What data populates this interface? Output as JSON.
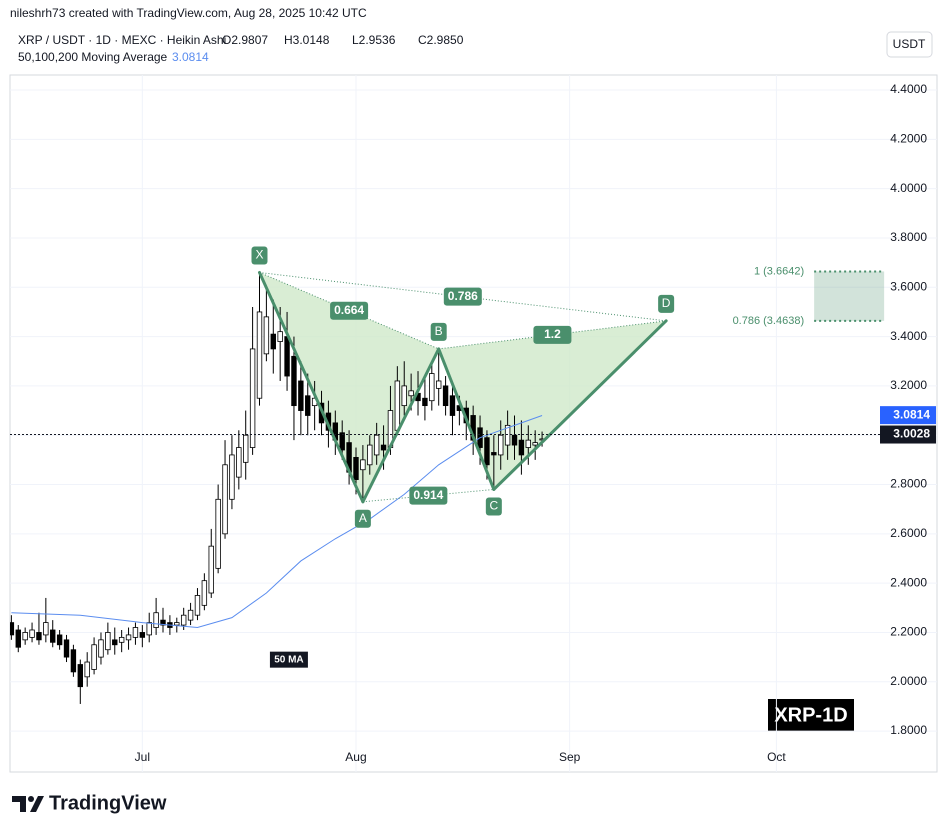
{
  "header": {
    "author_line": "nileshrh73 created with TradingView.com, Aug 28, 2025 10:42 UTC",
    "currency_button": "USDT",
    "brand": "TradingView",
    "watermark": "XRP-1D"
  },
  "chart_data": {
    "type": "candlestick",
    "title": "XRP / USDT · 1D · MEXC · Heikin Ashi",
    "ohlc": [
      "O2.9807",
      "H3.0148",
      "L2.9536",
      "C2.9850"
    ],
    "up_color": "#ffffff",
    "down_color": "#000000",
    "wick_color": "#000000",
    "open": [
      2.24,
      2.21,
      2.17,
      2.18,
      2.2,
      2.19,
      2.21,
      2.19,
      2.17,
      2.13,
      2.07,
      2.02,
      2.05,
      2.1,
      2.13,
      2.17,
      2.16,
      2.17,
      2.18,
      2.2,
      2.19,
      2.22,
      2.25,
      2.24,
      2.23,
      2.23,
      2.25,
      2.27,
      2.31,
      2.36,
      2.46,
      2.6,
      2.74,
      2.83,
      2.89,
      2.95,
      3.15,
      3.33,
      3.41,
      3.38,
      3.4,
      3.32,
      3.22,
      3.16,
      3.12,
      3.13,
      3.09,
      3.05,
      3.01,
      2.97,
      2.91,
      2.86,
      2.88,
      2.92,
      2.96,
      2.95,
      3.02,
      3.12,
      3.16,
      3.17,
      3.15,
      3.14,
      3.19,
      3.2,
      3.16,
      3.12,
      3.11,
      3.08,
      3.03,
      2.99,
      2.93,
      2.92,
      2.96,
      3.0,
      2.98,
      2.95,
      2.96,
      2.9807
    ],
    "high": [
      2.27,
      2.23,
      2.22,
      2.24,
      2.28,
      2.34,
      2.25,
      2.21,
      2.19,
      2.15,
      2.09,
      2.12,
      2.18,
      2.2,
      2.24,
      2.22,
      2.21,
      2.22,
      2.24,
      2.23,
      2.28,
      2.34,
      2.3,
      2.27,
      2.26,
      2.3,
      2.32,
      2.38,
      2.44,
      2.62,
      2.8,
      2.98,
      3.0,
      3.02,
      3.1,
      3.52,
      3.66,
      3.6,
      3.55,
      3.52,
      3.5,
      3.4,
      3.3,
      3.25,
      3.22,
      3.18,
      3.14,
      3.1,
      3.06,
      3.02,
      2.95,
      2.96,
      3.0,
      3.05,
      3.04,
      3.2,
      3.28,
      3.3,
      3.25,
      3.26,
      3.24,
      3.3,
      3.35,
      3.24,
      3.2,
      3.16,
      3.14,
      3.12,
      3.08,
      3.02,
      3.0,
      3.06,
      3.1,
      3.08,
      3.06,
      3.04,
      3.02,
      3.0148
    ],
    "low": [
      2.17,
      2.12,
      2.15,
      2.16,
      2.15,
      2.16,
      2.14,
      2.13,
      2.08,
      2.02,
      1.91,
      1.98,
      2.03,
      2.07,
      2.11,
      2.11,
      2.12,
      2.13,
      2.15,
      2.14,
      2.16,
      2.19,
      2.2,
      2.19,
      2.2,
      2.21,
      2.23,
      2.25,
      2.29,
      2.34,
      2.44,
      2.58,
      2.7,
      2.78,
      2.82,
      2.92,
      3.12,
      3.3,
      3.25,
      3.22,
      3.18,
      2.98,
      3.0,
      3.0,
      3.02,
      3.0,
      2.95,
      2.92,
      2.9,
      2.8,
      2.76,
      2.73,
      2.84,
      2.88,
      2.86,
      2.92,
      3.0,
      3.08,
      3.1,
      3.08,
      3.06,
      3.1,
      3.12,
      3.08,
      3.0,
      3.04,
      2.98,
      2.92,
      2.88,
      2.82,
      2.78,
      2.86,
      2.9,
      2.9,
      2.84,
      2.88,
      2.9,
      2.9536
    ],
    "close": [
      2.19,
      2.14,
      2.2,
      2.21,
      2.17,
      2.24,
      2.16,
      2.15,
      2.1,
      2.04,
      1.98,
      2.08,
      2.15,
      2.17,
      2.2,
      2.15,
      2.18,
      2.19,
      2.22,
      2.18,
      2.24,
      2.28,
      2.23,
      2.22,
      2.24,
      2.27,
      2.29,
      2.35,
      2.41,
      2.55,
      2.74,
      2.88,
      2.92,
      2.95,
      3.0,
      3.35,
      3.5,
      3.48,
      3.35,
      3.42,
      3.24,
      3.12,
      3.1,
      3.08,
      3.15,
      3.05,
      3.02,
      2.98,
      2.94,
      2.85,
      2.82,
      2.9,
      2.96,
      3.0,
      2.94,
      3.1,
      3.22,
      3.2,
      3.18,
      3.14,
      3.12,
      3.25,
      3.22,
      3.12,
      3.08,
      3.1,
      3.05,
      2.98,
      2.95,
      2.88,
      2.92,
      3.0,
      3.04,
      2.96,
      2.92,
      2.98,
      2.97,
      2.985
    ],
    "xlim": [
      -0.2,
      134.3
    ],
    "xticks": [
      {
        "value": 19,
        "label": "Jul"
      },
      {
        "value": 50,
        "label": "Aug"
      },
      {
        "value": 81,
        "label": "Sep"
      },
      {
        "value": 111,
        "label": "Oct"
      }
    ],
    "ylim": [
      1.634,
      4.461
    ],
    "yticks": [
      {
        "value": 1.8,
        "label": "1.8000"
      },
      {
        "value": 2.0,
        "label": "2.0000"
      },
      {
        "value": 2.2,
        "label": "2.2000"
      },
      {
        "value": 2.4,
        "label": "2.4000"
      },
      {
        "value": 2.6,
        "label": "2.6000"
      },
      {
        "value": 2.8,
        "label": "2.8000"
      },
      {
        "value": 3.0,
        "label": "3.0000"
      },
      {
        "value": 3.2,
        "label": "3.2000"
      },
      {
        "value": 3.4,
        "label": "3.4000"
      },
      {
        "value": 3.6,
        "label": "3.6000"
      },
      {
        "value": 3.8,
        "label": "3.8000"
      },
      {
        "value": 4.0,
        "label": "4.0000"
      },
      {
        "value": 4.2,
        "label": "4.2000"
      },
      {
        "value": 4.4,
        "label": "4.4000"
      }
    ],
    "grid": true,
    "last_price": 3.0028,
    "ma": {
      "legend": "50,100,200 Moving Average",
      "name": "50 MA",
      "color": "#5b8def",
      "last_value": 3.0814,
      "x": [
        0,
        10,
        19,
        27,
        32,
        37,
        42,
        47,
        52,
        57,
        62,
        68,
        72,
        77
      ],
      "values": [
        2.28,
        2.27,
        2.24,
        2.22,
        2.26,
        2.36,
        2.49,
        2.58,
        2.66,
        2.76,
        2.88,
        2.99,
        3.03,
        3.08
      ]
    },
    "pattern": {
      "color": "#4a8f6c",
      "fill": "#cfe8c9",
      "points": [
        {
          "name": "X",
          "x": 36,
          "value": 3.66
        },
        {
          "name": "A",
          "x": 51,
          "value": 2.73
        },
        {
          "name": "B",
          "x": 62,
          "value": 3.35
        },
        {
          "name": "C",
          "x": 70,
          "value": 2.78
        },
        {
          "name": "D",
          "x": 95,
          "value": 3.4638
        }
      ],
      "ratios": [
        {
          "from": "X",
          "to": "B",
          "ratio": 0.664
        },
        {
          "from": "X",
          "to": "D",
          "ratio": 0.786
        },
        {
          "from": "B",
          "to": "D",
          "ratio": 1.2
        },
        {
          "from": "A",
          "to": "C",
          "ratio": 0.914
        }
      ]
    },
    "target_zone": {
      "low": 3.4638,
      "high": 3.6642,
      "low_label": "0.786 (3.4638)",
      "high_label": "1 (3.6642)",
      "color": "#4a8f6c"
    }
  }
}
